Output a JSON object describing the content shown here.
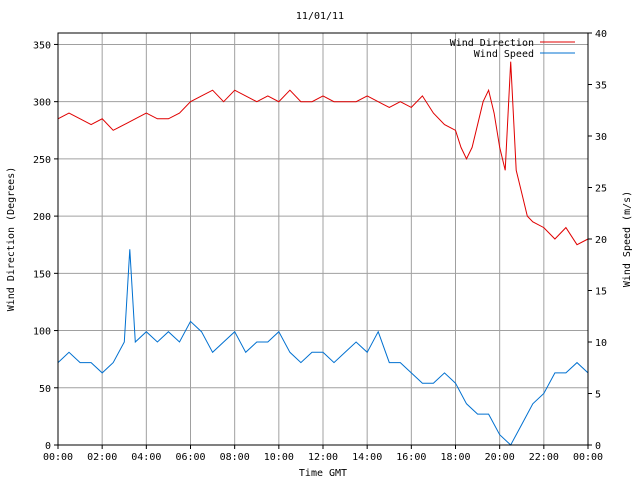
{
  "chart_data": {
    "type": "line",
    "title": "11/01/11",
    "xlabel": "Time GMT",
    "ylabel_left": "Wind Direction (Degrees)",
    "ylabel_right": "Wind Speed (m/s)",
    "x_ticks": [
      "00:00",
      "02:00",
      "04:00",
      "06:00",
      "08:00",
      "10:00",
      "12:00",
      "14:00",
      "16:00",
      "18:00",
      "20:00",
      "22:00",
      "00:00"
    ],
    "xlim_hours": [
      0,
      24
    ],
    "ylim_left": [
      0,
      360
    ],
    "ylim_right": [
      0,
      40
    ],
    "y_ticks_left": [
      0,
      50,
      100,
      150,
      200,
      250,
      300,
      350
    ],
    "y_ticks_right": [
      0,
      5,
      10,
      15,
      20,
      25,
      30,
      35,
      40
    ],
    "grid": true,
    "legend_position": "top-right",
    "series": [
      {
        "name": "Wind Direction",
        "axis": "left",
        "color": "#e00000",
        "x": [
          0,
          0.5,
          1,
          1.5,
          2,
          2.5,
          3,
          3.5,
          4,
          4.5,
          5,
          5.5,
          6,
          6.5,
          7,
          7.5,
          8,
          8.5,
          9,
          9.5,
          10,
          10.5,
          11,
          11.5,
          12,
          12.5,
          13,
          13.5,
          14,
          14.5,
          15,
          15.5,
          16,
          16.5,
          17,
          17.5,
          18,
          18.25,
          18.5,
          18.75,
          19,
          19.25,
          19.5,
          19.75,
          20,
          20.25,
          20.5,
          20.75,
          21,
          21.25,
          21.5,
          22,
          22.5,
          23,
          23.5,
          24
        ],
        "y": [
          285,
          290,
          285,
          280,
          285,
          275,
          280,
          285,
          290,
          285,
          285,
          290,
          300,
          305,
          310,
          300,
          310,
          305,
          300,
          305,
          300,
          310,
          300,
          300,
          305,
          300,
          300,
          300,
          305,
          300,
          295,
          300,
          295,
          305,
          290,
          280,
          275,
          260,
          250,
          260,
          280,
          300,
          310,
          290,
          260,
          240,
          335,
          240,
          220,
          200,
          195,
          190,
          180,
          190,
          175,
          180
        ]
      },
      {
        "name": "Wind Speed",
        "axis": "right",
        "color": "#0070d0",
        "x": [
          0,
          0.5,
          1,
          1.5,
          2,
          2.5,
          3,
          3.25,
          3.5,
          4,
          4.5,
          5,
          5.5,
          6,
          6.5,
          7,
          7.5,
          8,
          8.5,
          9,
          9.5,
          10,
          10.5,
          11,
          11.5,
          12,
          12.5,
          13,
          13.5,
          14,
          14.5,
          15,
          15.5,
          16,
          16.5,
          17,
          17.5,
          18,
          18.5,
          19,
          19.5,
          20,
          20.5,
          21,
          21.5,
          22,
          22.5,
          23,
          23.5,
          24
        ],
        "y": [
          8,
          9,
          8,
          8,
          7,
          8,
          10,
          19,
          10,
          11,
          10,
          11,
          10,
          12,
          11,
          9,
          10,
          11,
          9,
          10,
          10,
          11,
          9,
          8,
          9,
          9,
          8,
          9,
          10,
          9,
          11,
          8,
          8,
          7,
          6,
          6,
          7,
          6,
          4,
          3,
          3,
          1,
          0,
          2,
          4,
          5,
          7,
          7,
          8,
          7
        ]
      }
    ]
  }
}
